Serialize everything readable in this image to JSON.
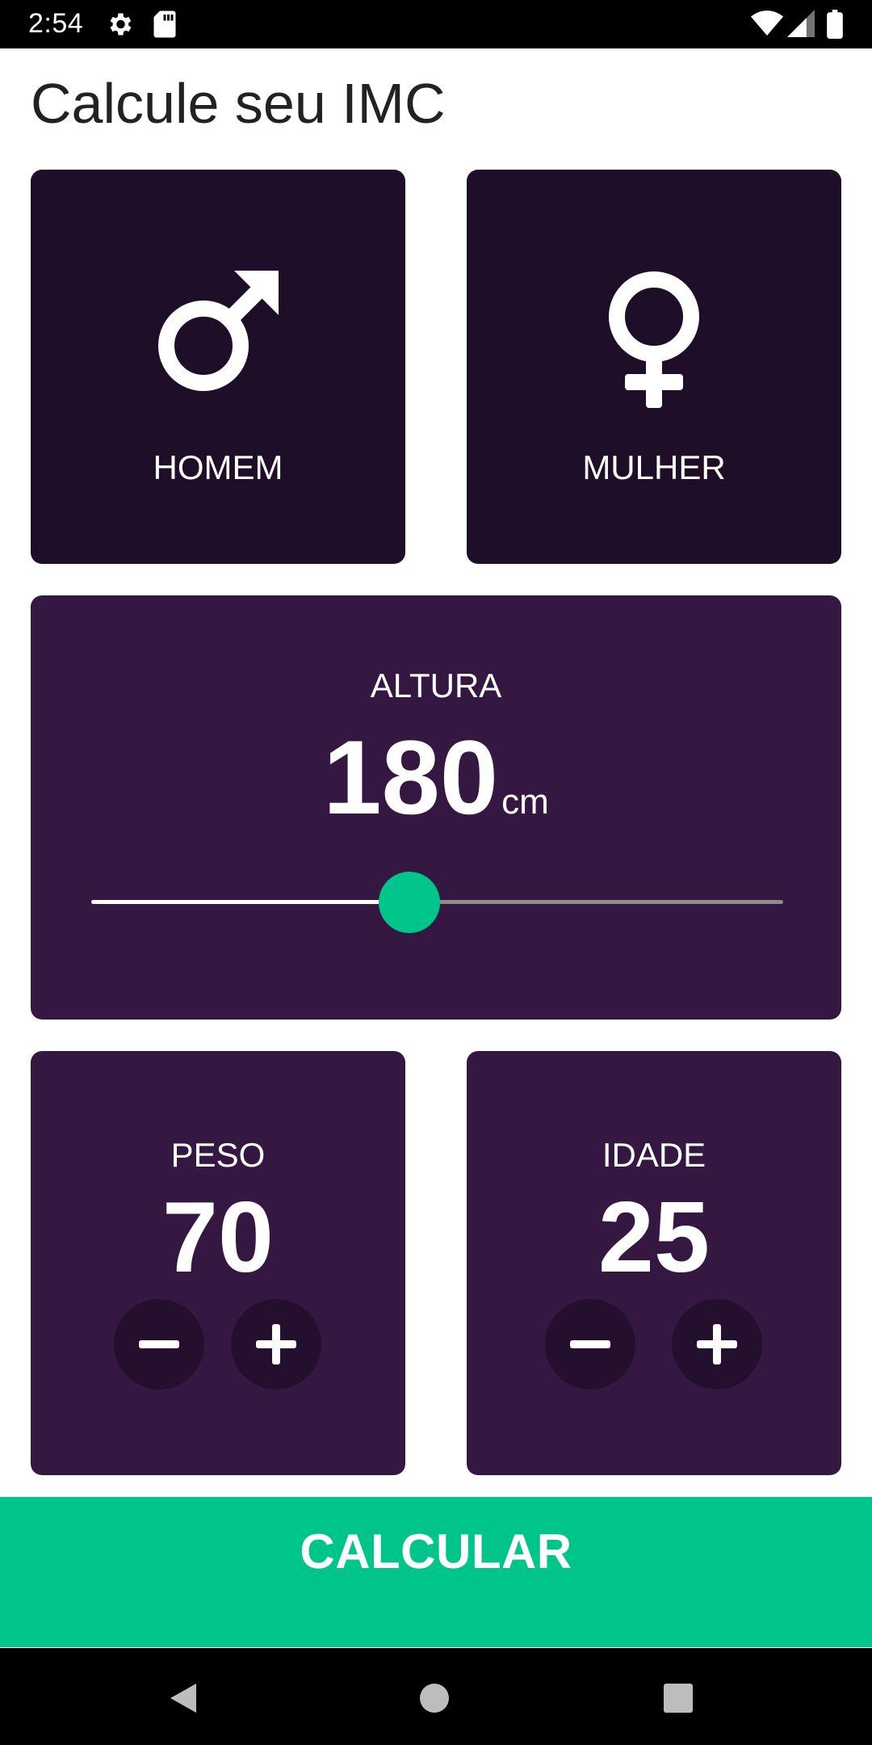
{
  "status_bar": {
    "time": "2:54",
    "left_icons": [
      "gear-icon",
      "sd-card-icon"
    ],
    "right_icons": [
      "wifi-icon",
      "signal-icon",
      "battery-icon"
    ]
  },
  "header": {
    "title": "Calcule seu IMC"
  },
  "gender": {
    "male_label": "HOMEM",
    "female_label": "MULHER",
    "male_icon": "male-symbol-icon",
    "female_icon": "female-symbol-icon"
  },
  "height": {
    "label": "ALTURA",
    "value": "180",
    "unit": "cm",
    "slider_fraction": 0.46
  },
  "weight": {
    "label": "PESO",
    "value": "70"
  },
  "age": {
    "label": "IDADE",
    "value": "25"
  },
  "actions": {
    "calculate_label": "CALCULAR"
  },
  "colors": {
    "accent": "#00c58b",
    "gender_card": "#1f0e28",
    "panel_card": "#351842",
    "round_button": "#240f2e"
  },
  "nav_bar": {
    "items": [
      "back-icon",
      "home-icon",
      "recents-icon"
    ]
  }
}
